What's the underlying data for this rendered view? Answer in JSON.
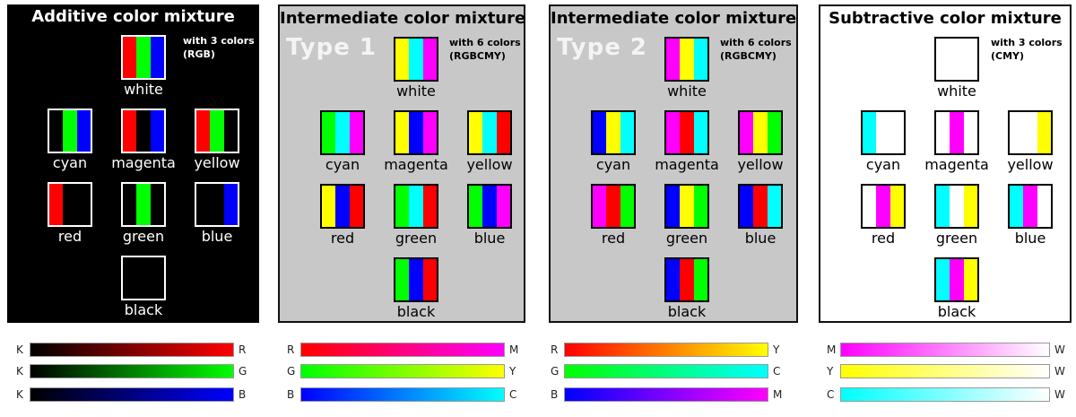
{
  "colors": {
    "R": "#ff0000",
    "G": "#00ff00",
    "B": "#0000ff",
    "C": "#00ffff",
    "M": "#ff00ff",
    "Y": "#ffff00",
    "K": "#000000",
    "W": "#ffffff"
  },
  "panels": [
    {
      "id": "additive",
      "title": "Additive color mixture",
      "type_label": "",
      "note_line1": "with 3 colors",
      "note_line2": "(RGB)",
      "background": "#000000",
      "text_color": "#ffffff",
      "swatches": [
        {
          "name": "white",
          "stripes": [
            "R",
            "G",
            "B"
          ]
        },
        {
          "name": "cyan",
          "stripes": [
            "K",
            "G",
            "B"
          ]
        },
        {
          "name": "magenta",
          "stripes": [
            "R",
            "K",
            "B"
          ]
        },
        {
          "name": "yellow",
          "stripes": [
            "R",
            "G",
            "K"
          ]
        },
        {
          "name": "red",
          "stripes": [
            "R",
            "K",
            "K"
          ]
        },
        {
          "name": "green",
          "stripes": [
            "K",
            "G",
            "K"
          ]
        },
        {
          "name": "blue",
          "stripes": [
            "K",
            "K",
            "B"
          ]
        },
        {
          "name": "black",
          "stripes": [
            "K",
            "K",
            "K"
          ]
        }
      ],
      "gradients": [
        {
          "from": "K",
          "to": "R"
        },
        {
          "from": "K",
          "to": "G"
        },
        {
          "from": "K",
          "to": "B"
        }
      ]
    },
    {
      "id": "intermediate-1",
      "title": "Intermediate color mixture",
      "type_label": "Type 1",
      "note_line1": "with 6 colors",
      "note_line2": "(RGBCMY)",
      "background": "#c8c8c8",
      "text_color": "#000000",
      "swatches": [
        {
          "name": "white",
          "stripes": [
            "Y",
            "C",
            "M"
          ]
        },
        {
          "name": "cyan",
          "stripes": [
            "G",
            "C",
            "M"
          ]
        },
        {
          "name": "magenta",
          "stripes": [
            "Y",
            "B",
            "M"
          ]
        },
        {
          "name": "yellow",
          "stripes": [
            "Y",
            "C",
            "R"
          ]
        },
        {
          "name": "red",
          "stripes": [
            "Y",
            "B",
            "R"
          ]
        },
        {
          "name": "green",
          "stripes": [
            "G",
            "C",
            "R"
          ]
        },
        {
          "name": "blue",
          "stripes": [
            "G",
            "B",
            "M"
          ]
        },
        {
          "name": "black",
          "stripes": [
            "G",
            "B",
            "R"
          ]
        }
      ],
      "gradients": [
        {
          "from": "R",
          "to": "M"
        },
        {
          "from": "G",
          "to": "Y"
        },
        {
          "from": "B",
          "to": "C"
        }
      ]
    },
    {
      "id": "intermediate-2",
      "title": "Intermediate color mixture",
      "type_label": "Type 2",
      "note_line1": "with 6 colors",
      "note_line2": "(RGBCMY)",
      "background": "#c8c8c8",
      "text_color": "#000000",
      "swatches": [
        {
          "name": "white",
          "stripes": [
            "M",
            "Y",
            "C"
          ]
        },
        {
          "name": "cyan",
          "stripes": [
            "B",
            "Y",
            "C"
          ]
        },
        {
          "name": "magenta",
          "stripes": [
            "M",
            "R",
            "C"
          ]
        },
        {
          "name": "yellow",
          "stripes": [
            "M",
            "Y",
            "G"
          ]
        },
        {
          "name": "red",
          "stripes": [
            "M",
            "R",
            "G"
          ]
        },
        {
          "name": "green",
          "stripes": [
            "B",
            "Y",
            "G"
          ]
        },
        {
          "name": "blue",
          "stripes": [
            "B",
            "R",
            "C"
          ]
        },
        {
          "name": "black",
          "stripes": [
            "B",
            "R",
            "G"
          ]
        }
      ],
      "gradients": [
        {
          "from": "R",
          "to": "Y"
        },
        {
          "from": "G",
          "to": "C"
        },
        {
          "from": "B",
          "to": "M"
        }
      ]
    },
    {
      "id": "subtractive",
      "title": "Subtractive color mixture",
      "type_label": "",
      "note_line1": "with 3 colors",
      "note_line2": "(CMY)",
      "background": "#ffffff",
      "text_color": "#000000",
      "swatches": [
        {
          "name": "white",
          "stripes": [
            "W",
            "W",
            "W"
          ]
        },
        {
          "name": "cyan",
          "stripes": [
            "C",
            "W",
            "W"
          ]
        },
        {
          "name": "magenta",
          "stripes": [
            "W",
            "M",
            "W"
          ]
        },
        {
          "name": "yellow",
          "stripes": [
            "W",
            "W",
            "Y"
          ]
        },
        {
          "name": "red",
          "stripes": [
            "W",
            "M",
            "Y"
          ]
        },
        {
          "name": "green",
          "stripes": [
            "C",
            "W",
            "Y"
          ]
        },
        {
          "name": "blue",
          "stripes": [
            "C",
            "M",
            "W"
          ]
        },
        {
          "name": "black",
          "stripes": [
            "C",
            "M",
            "Y"
          ]
        }
      ],
      "gradients": [
        {
          "from": "M",
          "to": "W"
        },
        {
          "from": "Y",
          "to": "W"
        },
        {
          "from": "C",
          "to": "W"
        }
      ]
    }
  ]
}
